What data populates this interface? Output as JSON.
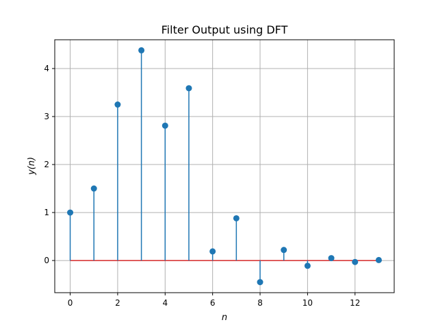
{
  "chart_data": {
    "type": "stem",
    "title": "Filter Output using DFT",
    "xlabel": "n",
    "ylabel": "y(n)",
    "x": [
      0,
      1,
      2,
      3,
      4,
      5,
      6,
      7,
      8,
      9,
      10,
      11,
      12,
      13
    ],
    "values": [
      1.0,
      1.5,
      3.25,
      4.38,
      2.81,
      3.59,
      0.19,
      0.88,
      -0.45,
      0.22,
      -0.11,
      0.05,
      -0.03,
      0.01
    ],
    "xlim": [
      -0.65,
      13.65
    ],
    "ylim": [
      -0.67,
      4.6
    ],
    "xticks": [
      0,
      2,
      4,
      6,
      8,
      10,
      12
    ],
    "xtick_labels": [
      "0",
      "2",
      "4",
      "6",
      "8",
      "10",
      "12"
    ],
    "yticks": [
      0,
      1,
      2,
      3,
      4
    ],
    "ytick_labels": [
      "0",
      "1",
      "2",
      "3",
      "4"
    ],
    "grid": true,
    "colors": {
      "stem": "#1f77b4",
      "baseline": "#d62728"
    }
  }
}
